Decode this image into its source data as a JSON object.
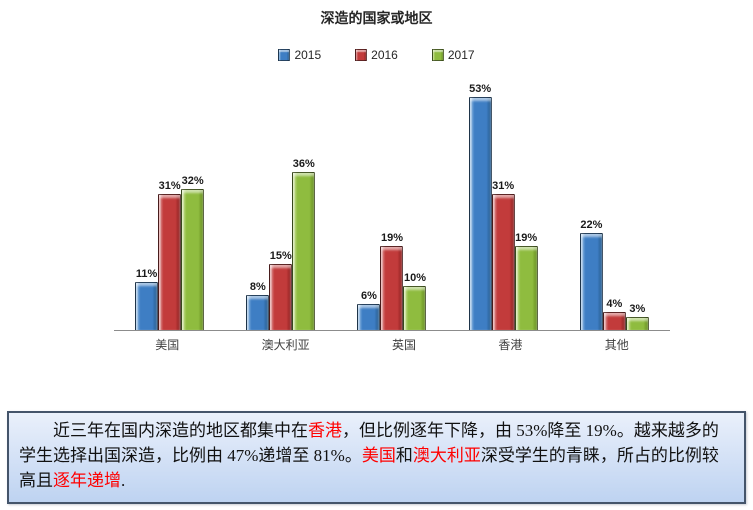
{
  "chart_data": {
    "type": "bar",
    "title": "深造的国家或地区",
    "categories": [
      "美国",
      "澳大利亚",
      "英国",
      "香港",
      "其他"
    ],
    "series": [
      {
        "name": "2015",
        "color": "#3E7EC4",
        "light": "#92BCE4",
        "dark": "#255A8C",
        "values": [
          11,
          8,
          6,
          53,
          22
        ]
      },
      {
        "name": "2016",
        "color": "#C23B3B",
        "light": "#DF9494",
        "dark": "#8B2020",
        "values": [
          31,
          15,
          19,
          31,
          4
        ]
      },
      {
        "name": "2017",
        "color": "#8FBC3F",
        "light": "#CBE194",
        "dark": "#648C1E",
        "values": [
          32,
          36,
          10,
          19,
          3
        ]
      }
    ],
    "value_suffix": "%",
    "ylim": [
      0,
      55
    ],
    "grid": false,
    "legend_position": "top",
    "data_labels": true,
    "axis_line_color": "#8C8C8C"
  },
  "note": {
    "border_color": "#44546A",
    "background_top": "#EAF0FB",
    "background_bottom": "#BED3F1",
    "text_color": "#111111",
    "highlight_color": "#FF0000",
    "segments": [
      {
        "text": "近三年在国内深造的地区都集中在",
        "highlight": false
      },
      {
        "text": "香港",
        "highlight": true
      },
      {
        "text": "，但比例逐年下降，由 53%降至 19%。越来越多的学生选择出国深造，比例由 47%递增至 81%。",
        "highlight": false
      },
      {
        "text": "美国",
        "highlight": true
      },
      {
        "text": "和",
        "highlight": false
      },
      {
        "text": "澳大利亚",
        "highlight": true
      },
      {
        "text": "深受学生的青睐，所占的比例较高且",
        "highlight": false
      },
      {
        "text": "逐年递增",
        "highlight": true
      },
      {
        "text": ".",
        "highlight": false
      }
    ]
  }
}
